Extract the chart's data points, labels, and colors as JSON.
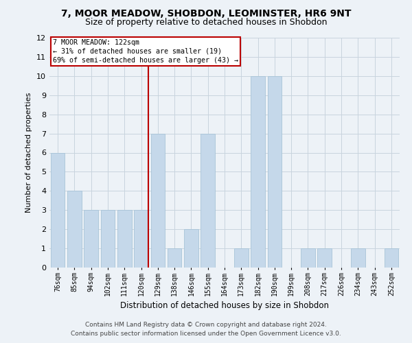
{
  "title1": "7, MOOR MEADOW, SHOBDON, LEOMINSTER, HR6 9NT",
  "title2": "Size of property relative to detached houses in Shobdon",
  "xlabel": "Distribution of detached houses by size in Shobdon",
  "ylabel": "Number of detached properties",
  "footnote1": "Contains HM Land Registry data © Crown copyright and database right 2024.",
  "footnote2": "Contains public sector information licensed under the Open Government Licence v3.0.",
  "categories": [
    "76sqm",
    "85sqm",
    "94sqm",
    "102sqm",
    "111sqm",
    "120sqm",
    "129sqm",
    "138sqm",
    "146sqm",
    "155sqm",
    "164sqm",
    "173sqm",
    "182sqm",
    "190sqm",
    "199sqm",
    "208sqm",
    "217sqm",
    "226sqm",
    "234sqm",
    "243sqm",
    "252sqm"
  ],
  "values": [
    6,
    4,
    3,
    3,
    3,
    3,
    7,
    1,
    2,
    7,
    0,
    1,
    10,
    10,
    0,
    1,
    1,
    0,
    1,
    0,
    1
  ],
  "bar_color": "#c5d8ea",
  "bar_edgecolor": "#a8c4d8",
  "reference_line_index": 5,
  "reference_line_label": "7 MOOR MEADOW: 122sqm",
  "annotation_line1": "← 31% of detached houses are smaller (19)",
  "annotation_line2": "69% of semi-detached houses are larger (43) →",
  "ref_line_color": "#bb0000",
  "annotation_box_edgecolor": "#bb0000",
  "ylim": [
    0,
    12
  ],
  "yticks": [
    0,
    1,
    2,
    3,
    4,
    5,
    6,
    7,
    8,
    9,
    10,
    11,
    12
  ],
  "grid_color": "#c8d4de",
  "background_color": "#edf2f7",
  "plot_background": "#edf2f7",
  "title1_fontsize": 10,
  "title2_fontsize": 9,
  "ylabel_fontsize": 8,
  "xlabel_fontsize": 8.5,
  "footnote_fontsize": 6.5
}
